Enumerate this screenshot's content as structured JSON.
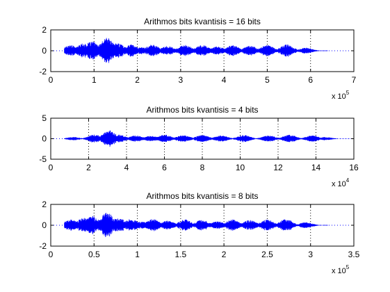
{
  "chart_data": [
    {
      "type": "line",
      "title": "Arithmos bits kvantisis = 16 bits",
      "xlabel": "",
      "ylabel": "",
      "xlim": [
        0,
        7
      ],
      "ylim": [
        -2,
        2
      ],
      "xticks": [
        "0",
        "1",
        "2",
        "3",
        "4",
        "5",
        "6",
        "7"
      ],
      "yticks": [
        "-2",
        "0",
        "2"
      ],
      "x_multiplier": {
        "base": "x 10",
        "exp": "5"
      },
      "signal_end": 6.4,
      "grid": "vertical-dotted",
      "envelope": [
        {
          "x": 0.45,
          "amp": 0.55
        },
        {
          "x": 0.75,
          "amp": 0.7
        },
        {
          "x": 0.95,
          "amp": 0.9
        },
        {
          "x": 1.3,
          "amp": 1.25
        },
        {
          "x": 1.55,
          "amp": 0.75
        },
        {
          "x": 1.85,
          "amp": 0.6
        },
        {
          "x": 2.1,
          "amp": 0.35
        },
        {
          "x": 2.35,
          "amp": 0.6
        },
        {
          "x": 2.7,
          "amp": 0.45
        },
        {
          "x": 3.1,
          "amp": 0.55
        },
        {
          "x": 3.5,
          "amp": 0.55
        },
        {
          "x": 3.85,
          "amp": 0.4
        },
        {
          "x": 4.2,
          "amp": 0.55
        },
        {
          "x": 4.6,
          "amp": 0.5
        },
        {
          "x": 5.0,
          "amp": 0.55
        },
        {
          "x": 5.45,
          "amp": 0.6
        },
        {
          "x": 5.9,
          "amp": 0.3
        }
      ]
    },
    {
      "type": "line",
      "title": "Arithmos bits kvantisis = 4 bits",
      "xlabel": "",
      "ylabel": "",
      "xlim": [
        0,
        16
      ],
      "ylim": [
        -5,
        5
      ],
      "xticks": [
        "0",
        "2",
        "4",
        "6",
        "8",
        "10",
        "12",
        "14",
        "16"
      ],
      "yticks": [
        "-5",
        "0",
        "5"
      ],
      "x_multiplier": {
        "base": "x 10",
        "exp": "4"
      },
      "signal_end": 16,
      "grid": "vertical-dotted",
      "envelope": [
        {
          "x": 1.2,
          "amp": 0.4
        },
        {
          "x": 2.3,
          "amp": 1.0
        },
        {
          "x": 3.1,
          "amp": 2.1
        },
        {
          "x": 3.6,
          "amp": 1.0
        },
        {
          "x": 4.5,
          "amp": 0.8
        },
        {
          "x": 5.3,
          "amp": 0.7
        },
        {
          "x": 6.0,
          "amp": 1.0
        },
        {
          "x": 7.0,
          "amp": 0.9
        },
        {
          "x": 8.0,
          "amp": 0.9
        },
        {
          "x": 9.0,
          "amp": 0.8
        },
        {
          "x": 10.2,
          "amp": 0.9
        },
        {
          "x": 11.5,
          "amp": 0.8
        },
        {
          "x": 12.6,
          "amp": 1.0
        },
        {
          "x": 13.8,
          "amp": 0.8
        },
        {
          "x": 14.5,
          "amp": 0.4
        }
      ]
    },
    {
      "type": "line",
      "title": "Arithmos bits kvantisis = 8 bits",
      "xlabel": "",
      "ylabel": "",
      "xlim": [
        0,
        3.5
      ],
      "ylim": [
        -2,
        2
      ],
      "xticks": [
        "0",
        "0.5",
        "1",
        "1.5",
        "2",
        "2.5",
        "3",
        "3.5"
      ],
      "yticks": [
        "-2",
        "0",
        "2"
      ],
      "x_multiplier": {
        "base": "x 10",
        "exp": "5"
      },
      "signal_end": 3.2,
      "grid": "vertical-dotted",
      "envelope": [
        {
          "x": 0.23,
          "amp": 0.55
        },
        {
          "x": 0.38,
          "amp": 0.7
        },
        {
          "x": 0.48,
          "amp": 0.9
        },
        {
          "x": 0.65,
          "amp": 1.25
        },
        {
          "x": 0.78,
          "amp": 0.75
        },
        {
          "x": 0.93,
          "amp": 0.6
        },
        {
          "x": 1.05,
          "amp": 0.35
        },
        {
          "x": 1.18,
          "amp": 0.6
        },
        {
          "x": 1.35,
          "amp": 0.45
        },
        {
          "x": 1.55,
          "amp": 0.55
        },
        {
          "x": 1.75,
          "amp": 0.55
        },
        {
          "x": 1.93,
          "amp": 0.4
        },
        {
          "x": 2.1,
          "amp": 0.55
        },
        {
          "x": 2.3,
          "amp": 0.5
        },
        {
          "x": 2.5,
          "amp": 0.55
        },
        {
          "x": 2.72,
          "amp": 0.6
        },
        {
          "x": 2.95,
          "amp": 0.3
        }
      ]
    }
  ],
  "colors": {
    "signal": "#0000ff",
    "axis": "#000000",
    "grid": "#000000",
    "background": "#ffffff"
  }
}
